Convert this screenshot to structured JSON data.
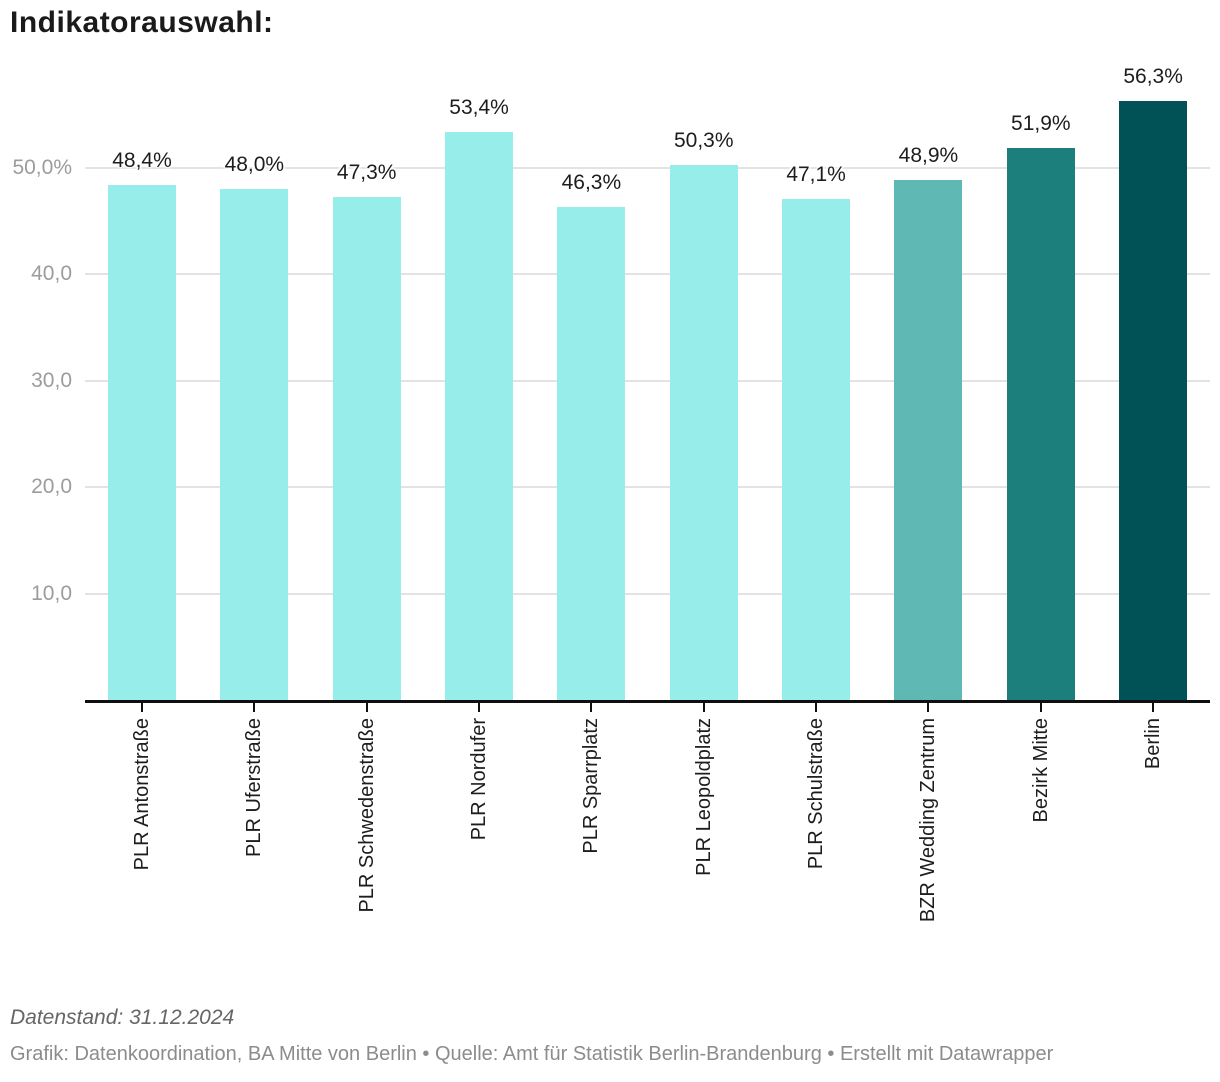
{
  "title": "Indikatorauswahl:",
  "chart_data": {
    "type": "bar",
    "title": "Indikatorauswahl:",
    "categories": [
      "PLR Antonstraße",
      "PLR Uferstraße",
      "PLR Schwedenstraße",
      "PLR Nordufer",
      "PLR Sparrplatz",
      "PLR Leopoldplatz",
      "PLR Schulstraße",
      "BZR Wedding Zentrum",
      "Bezirk Mitte",
      "Berlin"
    ],
    "values": [
      48.4,
      48.0,
      47.3,
      53.4,
      46.3,
      50.3,
      47.1,
      48.9,
      51.9,
      56.3
    ],
    "value_labels": [
      "48,4%",
      "48,0%",
      "47,3%",
      "53,4%",
      "46,3%",
      "50,3%",
      "47,1%",
      "48,9%",
      "51,9%",
      "56,3%"
    ],
    "bar_colors": [
      "#97EDE9",
      "#97EDE9",
      "#97EDE9",
      "#97EDE9",
      "#97EDE9",
      "#97EDE9",
      "#97EDE9",
      "#5FB8B3",
      "#1D7F7C",
      "#005256"
    ],
    "y_axis": {
      "ticks": [
        {
          "value": 10,
          "label": "10,0"
        },
        {
          "value": 20,
          "label": "20,0"
        },
        {
          "value": 30,
          "label": "30,0"
        },
        {
          "value": 40,
          "label": "40,0"
        },
        {
          "value": 50,
          "label": "50,0%"
        }
      ]
    },
    "ylim": [
      0,
      60
    ],
    "grid": true,
    "xlabel": "",
    "ylabel": ""
  },
  "footer": {
    "line1": "Datenstand: 31.12.2024",
    "line2": "Grafik: Datenkoordination, BA Mitte von Berlin • Quelle: Amt für Statistik Berlin-Brandenburg • Erstellt mit Datawrapper"
  },
  "colors": {
    "bar_plr": "#97EDE9",
    "bar_bzr": "#5FB8B3",
    "bar_bezirk": "#1D7F7C",
    "bar_berlin": "#005256",
    "grid_line": "#e3e3e3",
    "axis_line": "#0f0f0f",
    "y_label": "#9c9c9c",
    "value_label": "#1d1d1d",
    "title": "#1a1a1a",
    "footer_notes": "#666666",
    "footer_byline": "#8c8c8c"
  }
}
